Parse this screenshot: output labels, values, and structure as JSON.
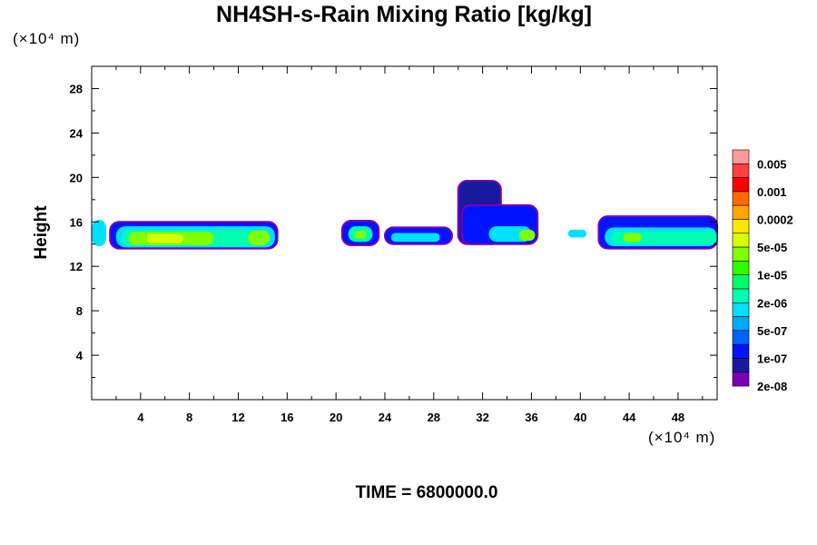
{
  "chart_data": {
    "type": "heatmap",
    "title": "NH4SH-s-Rain Mixing Ratio [kg/kg]",
    "ylabel": "Height",
    "x_unit": "(×10⁴ m)",
    "y_unit": "(×10⁴ m)",
    "xlim": [
      0,
      51.2
    ],
    "ylim": [
      0,
      30
    ],
    "x_ticks": [
      "4",
      "8",
      "12",
      "16",
      "20",
      "24",
      "28",
      "32",
      "36",
      "40",
      "44",
      "48"
    ],
    "y_ticks": [
      "4",
      "8",
      "12",
      "16",
      "20",
      "24",
      "28"
    ],
    "footer": "TIME = 6800000.0",
    "colorbar": {
      "labels": [
        "0.005",
        "0.001",
        "0.0002",
        "5e-05",
        "1e-05",
        "2e-06",
        "5e-07",
        "1e-07",
        "2e-08"
      ],
      "colors": [
        "#ff9a9a",
        "#ff4040",
        "#ff0000",
        "#ff6a00",
        "#ffa500",
        "#ffe600",
        "#d8ff00",
        "#80ff00",
        "#2dff00",
        "#00ff66",
        "#00ffb0",
        "#00e0ff",
        "#00a8ff",
        "#0064ff",
        "#0014ff",
        "#1a1aa0",
        "#7a00b4"
      ]
    },
    "cells": [
      {
        "x0": 0.0,
        "x1": 1.2,
        "y0": 13.8,
        "y1": 16.2,
        "level": "5e-07"
      },
      {
        "x0": 1.5,
        "x1": 15.2,
        "y0": 13.6,
        "y1": 16.0,
        "level": "1e-07"
      },
      {
        "x0": 2.0,
        "x1": 15.0,
        "y0": 13.7,
        "y1": 15.6,
        "level": "5e-07"
      },
      {
        "x0": 2.5,
        "x1": 14.5,
        "y0": 13.8,
        "y1": 15.3,
        "level": "2e-06"
      },
      {
        "x0": 3.0,
        "x1": 10.0,
        "y0": 13.9,
        "y1": 15.1,
        "level": "1e-05"
      },
      {
        "x0": 4.5,
        "x1": 7.5,
        "y0": 14.1,
        "y1": 14.9,
        "level": "5e-05"
      },
      {
        "x0": 12.8,
        "x1": 14.6,
        "y0": 13.9,
        "y1": 15.2,
        "level": "1e-05"
      },
      {
        "x0": 20.5,
        "x1": 23.5,
        "y0": 13.9,
        "y1": 16.1,
        "level": "1e-07"
      },
      {
        "x0": 21.0,
        "x1": 23.0,
        "y0": 14.2,
        "y1": 15.6,
        "level": "2e-06"
      },
      {
        "x0": 21.5,
        "x1": 22.5,
        "y0": 14.5,
        "y1": 15.2,
        "level": "1e-05"
      },
      {
        "x0": 24.0,
        "x1": 29.5,
        "y0": 14.0,
        "y1": 15.5,
        "level": "1e-07"
      },
      {
        "x0": 24.5,
        "x1": 28.5,
        "y0": 14.2,
        "y1": 15.0,
        "level": "5e-07"
      },
      {
        "x0": 30.0,
        "x1": 33.5,
        "y0": 14.0,
        "y1": 19.7,
        "level": "2e-08"
      },
      {
        "x0": 30.3,
        "x1": 36.5,
        "y0": 14.0,
        "y1": 17.5,
        "level": "1e-07"
      },
      {
        "x0": 32.5,
        "x1": 36.0,
        "y0": 14.2,
        "y1": 15.6,
        "level": "5e-07"
      },
      {
        "x0": 35.0,
        "x1": 36.3,
        "y0": 14.3,
        "y1": 15.3,
        "level": "1e-05"
      },
      {
        "x0": 39.0,
        "x1": 40.5,
        "y0": 14.6,
        "y1": 15.3,
        "level": "5e-07"
      },
      {
        "x0": 41.5,
        "x1": 51.2,
        "y0": 13.6,
        "y1": 16.5,
        "level": "1e-07"
      },
      {
        "x0": 42.0,
        "x1": 51.2,
        "y0": 13.8,
        "y1": 15.5,
        "level": "5e-07"
      },
      {
        "x0": 42.5,
        "x1": 51.2,
        "y0": 14.0,
        "y1": 15.1,
        "level": "2e-06"
      },
      {
        "x0": 43.5,
        "x1": 45.0,
        "y0": 14.2,
        "y1": 15.0,
        "level": "1e-05"
      }
    ]
  }
}
